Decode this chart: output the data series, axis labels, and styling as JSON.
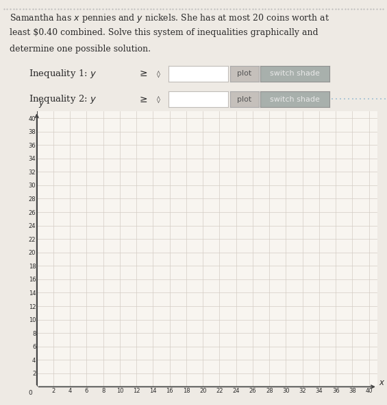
{
  "line1": "Samantha has $x$ pennies and $y$ nickels. She has at most 20 coins worth at",
  "line2": "least $0.40 combined. Solve this system of inequalities graphically and",
  "line3": "determine one possible solution.",
  "ineq1_label": "Inequality 1: $y$",
  "ineq2_label": "Inequality 2: $y$",
  "ineq_sign": "≥",
  "plot_btn_text": "plot",
  "switch_shade_text": "switch shade",
  "x_ticks": [
    0,
    2,
    4,
    6,
    8,
    10,
    12,
    14,
    16,
    18,
    20,
    22,
    24,
    26,
    28,
    30,
    32,
    34,
    36,
    38,
    40
  ],
  "y_ticks": [
    2,
    4,
    6,
    8,
    10,
    12,
    14,
    16,
    18,
    20,
    22,
    24,
    26,
    28,
    30,
    32,
    34,
    36,
    38,
    40
  ],
  "xlim": [
    0,
    41
  ],
  "ylim": [
    0,
    41
  ],
  "bg_color": "#eeeae4",
  "grid_color": "#d4ccc4",
  "plot_area_bg": "#f8f5f0",
  "btn_plot_color": "#c5c0bb",
  "btn_shade_color": "#a8b0ac",
  "btn_text_color": "#555555",
  "btn_shade_text_color": "#e8e8e8",
  "input_box_color": "#ffffff",
  "dotted_color": "#90b8d0",
  "text_color": "#2a2a2a",
  "axis_color": "#444444",
  "top_dot_color": "#bbbbbb"
}
